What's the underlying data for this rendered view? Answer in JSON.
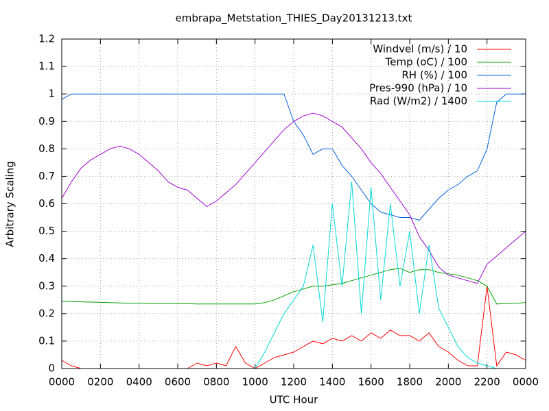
{
  "chart_data": {
    "type": "line",
    "title": "embrapa_Metstation_THIES_Day20131213.txt",
    "x_label": "UTC Hour",
    "y_label": "Arbitrary Scaling",
    "xlim": [
      0,
      24
    ],
    "xticks": [
      {
        "value": 0,
        "label": "0000"
      },
      {
        "value": 2,
        "label": "0200"
      },
      {
        "value": 4,
        "label": "0400"
      },
      {
        "value": 6,
        "label": "0600"
      },
      {
        "value": 8,
        "label": "0800"
      },
      {
        "value": 10,
        "label": "1000"
      },
      {
        "value": 12,
        "label": "1200"
      },
      {
        "value": 14,
        "label": "1400"
      },
      {
        "value": 16,
        "label": "1600"
      },
      {
        "value": 18,
        "label": "1800"
      },
      {
        "value": 20,
        "label": "2000"
      },
      {
        "value": 22,
        "label": "2200"
      },
      {
        "value": 24,
        "label": "0000"
      }
    ],
    "ylim": [
      0,
      1.2
    ],
    "yticks": [
      0,
      0.1,
      0.2,
      0.3,
      0.4,
      0.5,
      0.6,
      0.7,
      0.8,
      0.9,
      1,
      1.1,
      1.2
    ],
    "grid": true,
    "legend": "top-right",
    "x": [
      0,
      0.5,
      1,
      1.5,
      2,
      2.5,
      3,
      3.5,
      4,
      4.5,
      5,
      5.5,
      6,
      6.5,
      7,
      7.5,
      8,
      8.5,
      9,
      9.5,
      10,
      10.5,
      11,
      11.5,
      12,
      12.5,
      13,
      13.5,
      14,
      14.5,
      15,
      15.5,
      16,
      16.5,
      17,
      17.5,
      18,
      18.5,
      19,
      19.5,
      20,
      20.5,
      21,
      21.5,
      22,
      22.5,
      23,
      23.5,
      24
    ],
    "series": [
      {
        "name": "Windvel (m/s) / 10",
        "color": "#ff0000",
        "values": [
          0.03,
          0.01,
          0,
          0,
          0,
          0,
          0,
          0,
          0,
          0,
          0,
          0,
          0,
          0,
          0.02,
          0.01,
          0.02,
          0.01,
          0.08,
          0.02,
          0,
          0.02,
          0.04,
          0.05,
          0.06,
          0.08,
          0.1,
          0.09,
          0.11,
          0.1,
          0.12,
          0.1,
          0.13,
          0.11,
          0.14,
          0.12,
          0.12,
          0.1,
          0.13,
          0.08,
          0.06,
          0.03,
          0.01,
          0.01,
          0.3,
          0.01,
          0.06,
          0.05,
          0.03
        ]
      },
      {
        "name": "Temp (oC) / 100",
        "color": "#00a000",
        "values": [
          0.245,
          0.244,
          0.243,
          0.242,
          0.241,
          0.24,
          0.239,
          0.238,
          0.238,
          0.237,
          0.237,
          0.237,
          0.236,
          0.236,
          0.235,
          0.235,
          0.235,
          0.235,
          0.235,
          0.235,
          0.235,
          0.24,
          0.25,
          0.265,
          0.28,
          0.29,
          0.3,
          0.3,
          0.305,
          0.31,
          0.32,
          0.33,
          0.34,
          0.35,
          0.36,
          0.365,
          0.35,
          0.36,
          0.36,
          0.35,
          0.345,
          0.34,
          0.33,
          0.32,
          0.3,
          0.235,
          0.237,
          0.238,
          0.24
        ]
      },
      {
        "name": "RH (%) / 100",
        "color": "#0060e0",
        "values": [
          0.98,
          1,
          1,
          1,
          1,
          1,
          1,
          1,
          1,
          1,
          1,
          1,
          1,
          1,
          1,
          1,
          1,
          1,
          1,
          1,
          1,
          1,
          1,
          1,
          0.9,
          0.85,
          0.78,
          0.8,
          0.8,
          0.74,
          0.7,
          0.65,
          0.6,
          0.57,
          0.56,
          0.55,
          0.55,
          0.54,
          0.58,
          0.62,
          0.65,
          0.67,
          0.7,
          0.72,
          0.8,
          0.97,
          1,
          1,
          1
        ]
      },
      {
        "name": "Pres-990 (hPa) / 10",
        "color": "#a000d0",
        "values": [
          0.62,
          0.68,
          0.73,
          0.76,
          0.78,
          0.8,
          0.81,
          0.8,
          0.78,
          0.75,
          0.72,
          0.68,
          0.66,
          0.65,
          0.62,
          0.59,
          0.61,
          0.64,
          0.67,
          0.71,
          0.75,
          0.79,
          0.83,
          0.87,
          0.9,
          0.92,
          0.93,
          0.92,
          0.9,
          0.88,
          0.84,
          0.8,
          0.75,
          0.71,
          0.66,
          0.61,
          0.56,
          0.48,
          0.43,
          0.37,
          0.34,
          0.33,
          0.32,
          0.31,
          0.38,
          0.41,
          0.44,
          0.47,
          0.5
        ]
      },
      {
        "name": "Rad (W/m2) / 1400",
        "color": "#00d8d8",
        "values": [
          0,
          0,
          0,
          0,
          0,
          0,
          0,
          0,
          0,
          0,
          0,
          0,
          0,
          0,
          0,
          0,
          0,
          0,
          0,
          0,
          0,
          0.06,
          0.13,
          0.2,
          0.25,
          0.3,
          0.45,
          0.17,
          0.6,
          0.3,
          0.68,
          0.2,
          0.66,
          0.25,
          0.6,
          0.3,
          0.5,
          0.2,
          0.45,
          0.22,
          0.15,
          0.08,
          0.04,
          0.02,
          0.01,
          0,
          0,
          0,
          0
        ]
      }
    ]
  }
}
